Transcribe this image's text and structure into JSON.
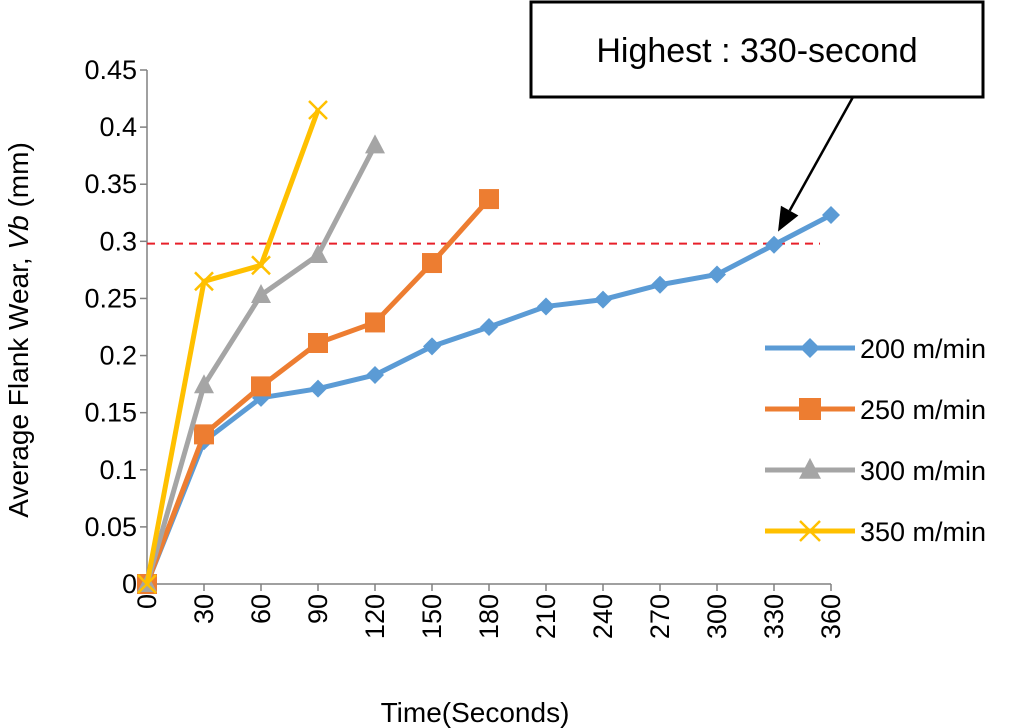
{
  "chart_data": {
    "type": "line",
    "title": "",
    "xlabel": "Time(Seconds)",
    "ylabel_prefix": "Average Flank Wear, ",
    "ylabel_italic": "Vb",
    "ylabel_suffix": " (mm)",
    "xlim": [
      0,
      360
    ],
    "ylim": [
      0,
      0.45
    ],
    "x_ticks": [
      0,
      30,
      60,
      90,
      120,
      150,
      180,
      210,
      240,
      270,
      300,
      330,
      360
    ],
    "y_ticks": [
      0,
      0.05,
      0.1,
      0.15,
      0.2,
      0.25,
      0.3,
      0.35,
      0.4,
      0.45
    ],
    "grid": false,
    "legend_position": "right",
    "reference_line": {
      "y": 0.298,
      "color": "#e8202a",
      "style": "dashed"
    },
    "annotation": {
      "text": "Highest : 330-second",
      "points_to": {
        "x": 330,
        "y": 0.298
      }
    },
    "series": [
      {
        "name": "200 m/min",
        "color": "#5b9bd5",
        "marker": "diamond",
        "x": [
          0,
          30,
          60,
          90,
          120,
          150,
          180,
          210,
          240,
          270,
          300,
          330,
          360
        ],
        "y": [
          0,
          0.125,
          0.163,
          0.171,
          0.183,
          0.208,
          0.225,
          0.243,
          0.249,
          0.262,
          0.271,
          0.297,
          0.323
        ]
      },
      {
        "name": "250 m/min",
        "color": "#ed7d31",
        "marker": "square",
        "x": [
          0,
          30,
          60,
          90,
          120,
          150,
          180
        ],
        "y": [
          0,
          0.131,
          0.173,
          0.211,
          0.229,
          0.281,
          0.337
        ]
      },
      {
        "name": "300 m/min",
        "color": "#a5a5a5",
        "marker": "triangle",
        "x": [
          0,
          30,
          60,
          90,
          120
        ],
        "y": [
          0,
          0.174,
          0.253,
          0.288,
          0.384
        ]
      },
      {
        "name": "350 m/min",
        "color": "#ffc000",
        "marker": "x",
        "x": [
          0,
          30,
          60,
          90
        ],
        "y": [
          0,
          0.265,
          0.279,
          0.415
        ]
      }
    ]
  }
}
